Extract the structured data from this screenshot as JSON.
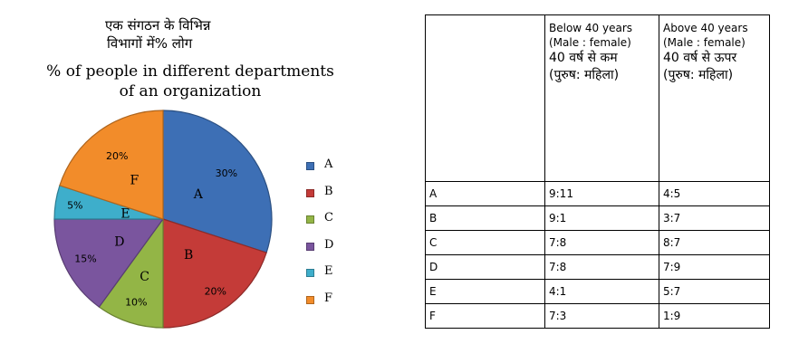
{
  "chart_data": [
    {
      "type": "pie",
      "title_hindi_lines": [
        "एक संगठन के विभिन्न",
        "विभागों में% लोग"
      ],
      "title_lines": [
        "% of people in different departments",
        "of an organization"
      ],
      "categories": [
        "A",
        "B",
        "C",
        "D",
        "E",
        "F"
      ],
      "values": [
        30,
        20,
        10,
        15,
        5,
        20
      ],
      "value_labels": [
        "30%",
        "20%",
        "10%",
        "15%",
        "5%",
        "20%"
      ],
      "colors": [
        "#3d6fb5",
        "#c43b38",
        "#93b546",
        "#7a559e",
        "#3eaecb",
        "#f28c2a"
      ],
      "legend": {
        "placement": "right",
        "entries": [
          "A",
          "B",
          "C",
          "D",
          "E",
          "F"
        ]
      }
    },
    {
      "type": "table",
      "header": [
        "",
        {
          "en": [
            "Below 40 years",
            "(Male : female)"
          ],
          "hi": [
            "40 वर्ष से कम",
            "(पुरुष: महिला)"
          ]
        },
        {
          "en": [
            "Above 40 years",
            "(Male : female)"
          ],
          "hi": [
            "40 वर्ष से ऊपर",
            "(पुरुष: महिला)"
          ]
        }
      ],
      "rows": [
        [
          "A",
          "9:11",
          "4:5"
        ],
        [
          "B",
          "9:1",
          "3:7"
        ],
        [
          "C",
          "7:8",
          "8:7"
        ],
        [
          "D",
          "7:8",
          "7:9"
        ],
        [
          "E",
          "4:1",
          "5:7"
        ],
        [
          "F",
          "7:3",
          "1:9"
        ]
      ]
    }
  ]
}
